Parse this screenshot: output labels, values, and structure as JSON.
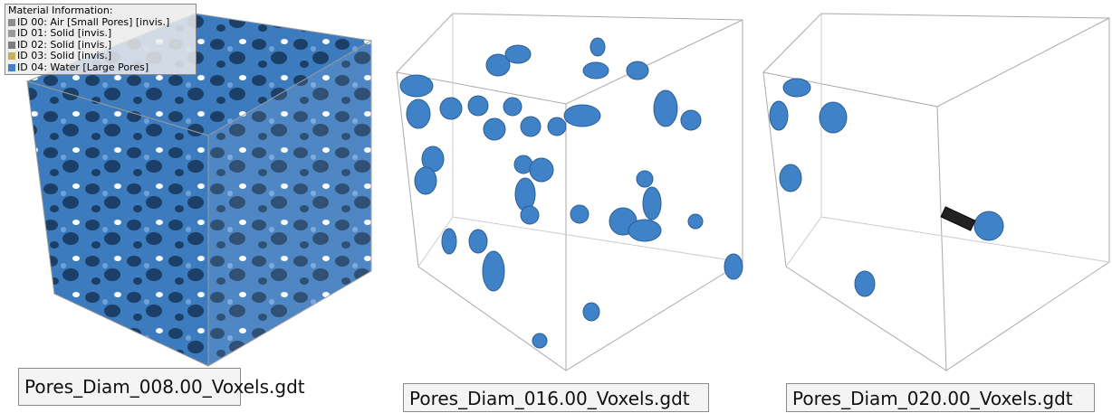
{
  "legend": {
    "title": "Material Information:",
    "items": [
      "ID 00: Air [Small Pores] [invis.]",
      "ID 01: Solid [invis.]",
      "ID 02: Solid [invis.]",
      "ID 03: Solid [invis.]",
      "ID 04: Water [Large Pores]"
    ]
  },
  "panels": [
    {
      "label": "Pores_Diam_008.00_Voxels.gdt"
    },
    {
      "label": "Pores_Diam_016.00_Voxels.gdt"
    },
    {
      "label": "Pores_Diam_020.00_Voxels.gdt"
    }
  ]
}
